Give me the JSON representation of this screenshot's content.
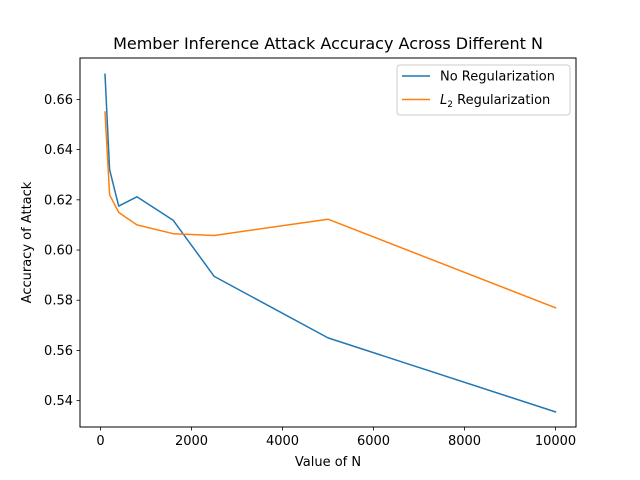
{
  "chart_data": {
    "type": "line",
    "title": "Member Inference Attack Accuracy Across Different N",
    "xlabel": "Value of N",
    "ylabel": "Accuracy of Attack",
    "xlim": [
      -450,
      10450
    ],
    "ylim": [
      0.5295,
      0.6765
    ],
    "xticks": [
      0,
      2000,
      4000,
      6000,
      8000,
      10000
    ],
    "yticks": [
      0.54,
      0.56,
      0.58,
      0.6,
      0.62,
      0.64,
      0.66
    ],
    "ytick_decimals": 2,
    "grid": false,
    "legend_position": "upper-right",
    "series": [
      {
        "name": "No Regularization",
        "legend_main": "No Regularization",
        "legend_sub": "",
        "legend_rest": "",
        "color": "#1f77b4",
        "x": [
          100,
          200,
          400,
          800,
          1600,
          2500,
          5000,
          10000
        ],
        "y": [
          0.67,
          0.632,
          0.6175,
          0.6212,
          0.6118,
          0.5895,
          0.565,
          0.5355
        ]
      },
      {
        "name": "L2 Regularization",
        "legend_main": "L",
        "legend_sub": "2",
        "legend_rest": " Regularization",
        "color": "#ff7f0e",
        "x": [
          100,
          200,
          400,
          800,
          1600,
          2500,
          5000,
          10000
        ],
        "y": [
          0.655,
          0.622,
          0.615,
          0.61,
          0.6065,
          0.6058,
          0.6123,
          0.577
        ]
      }
    ]
  }
}
